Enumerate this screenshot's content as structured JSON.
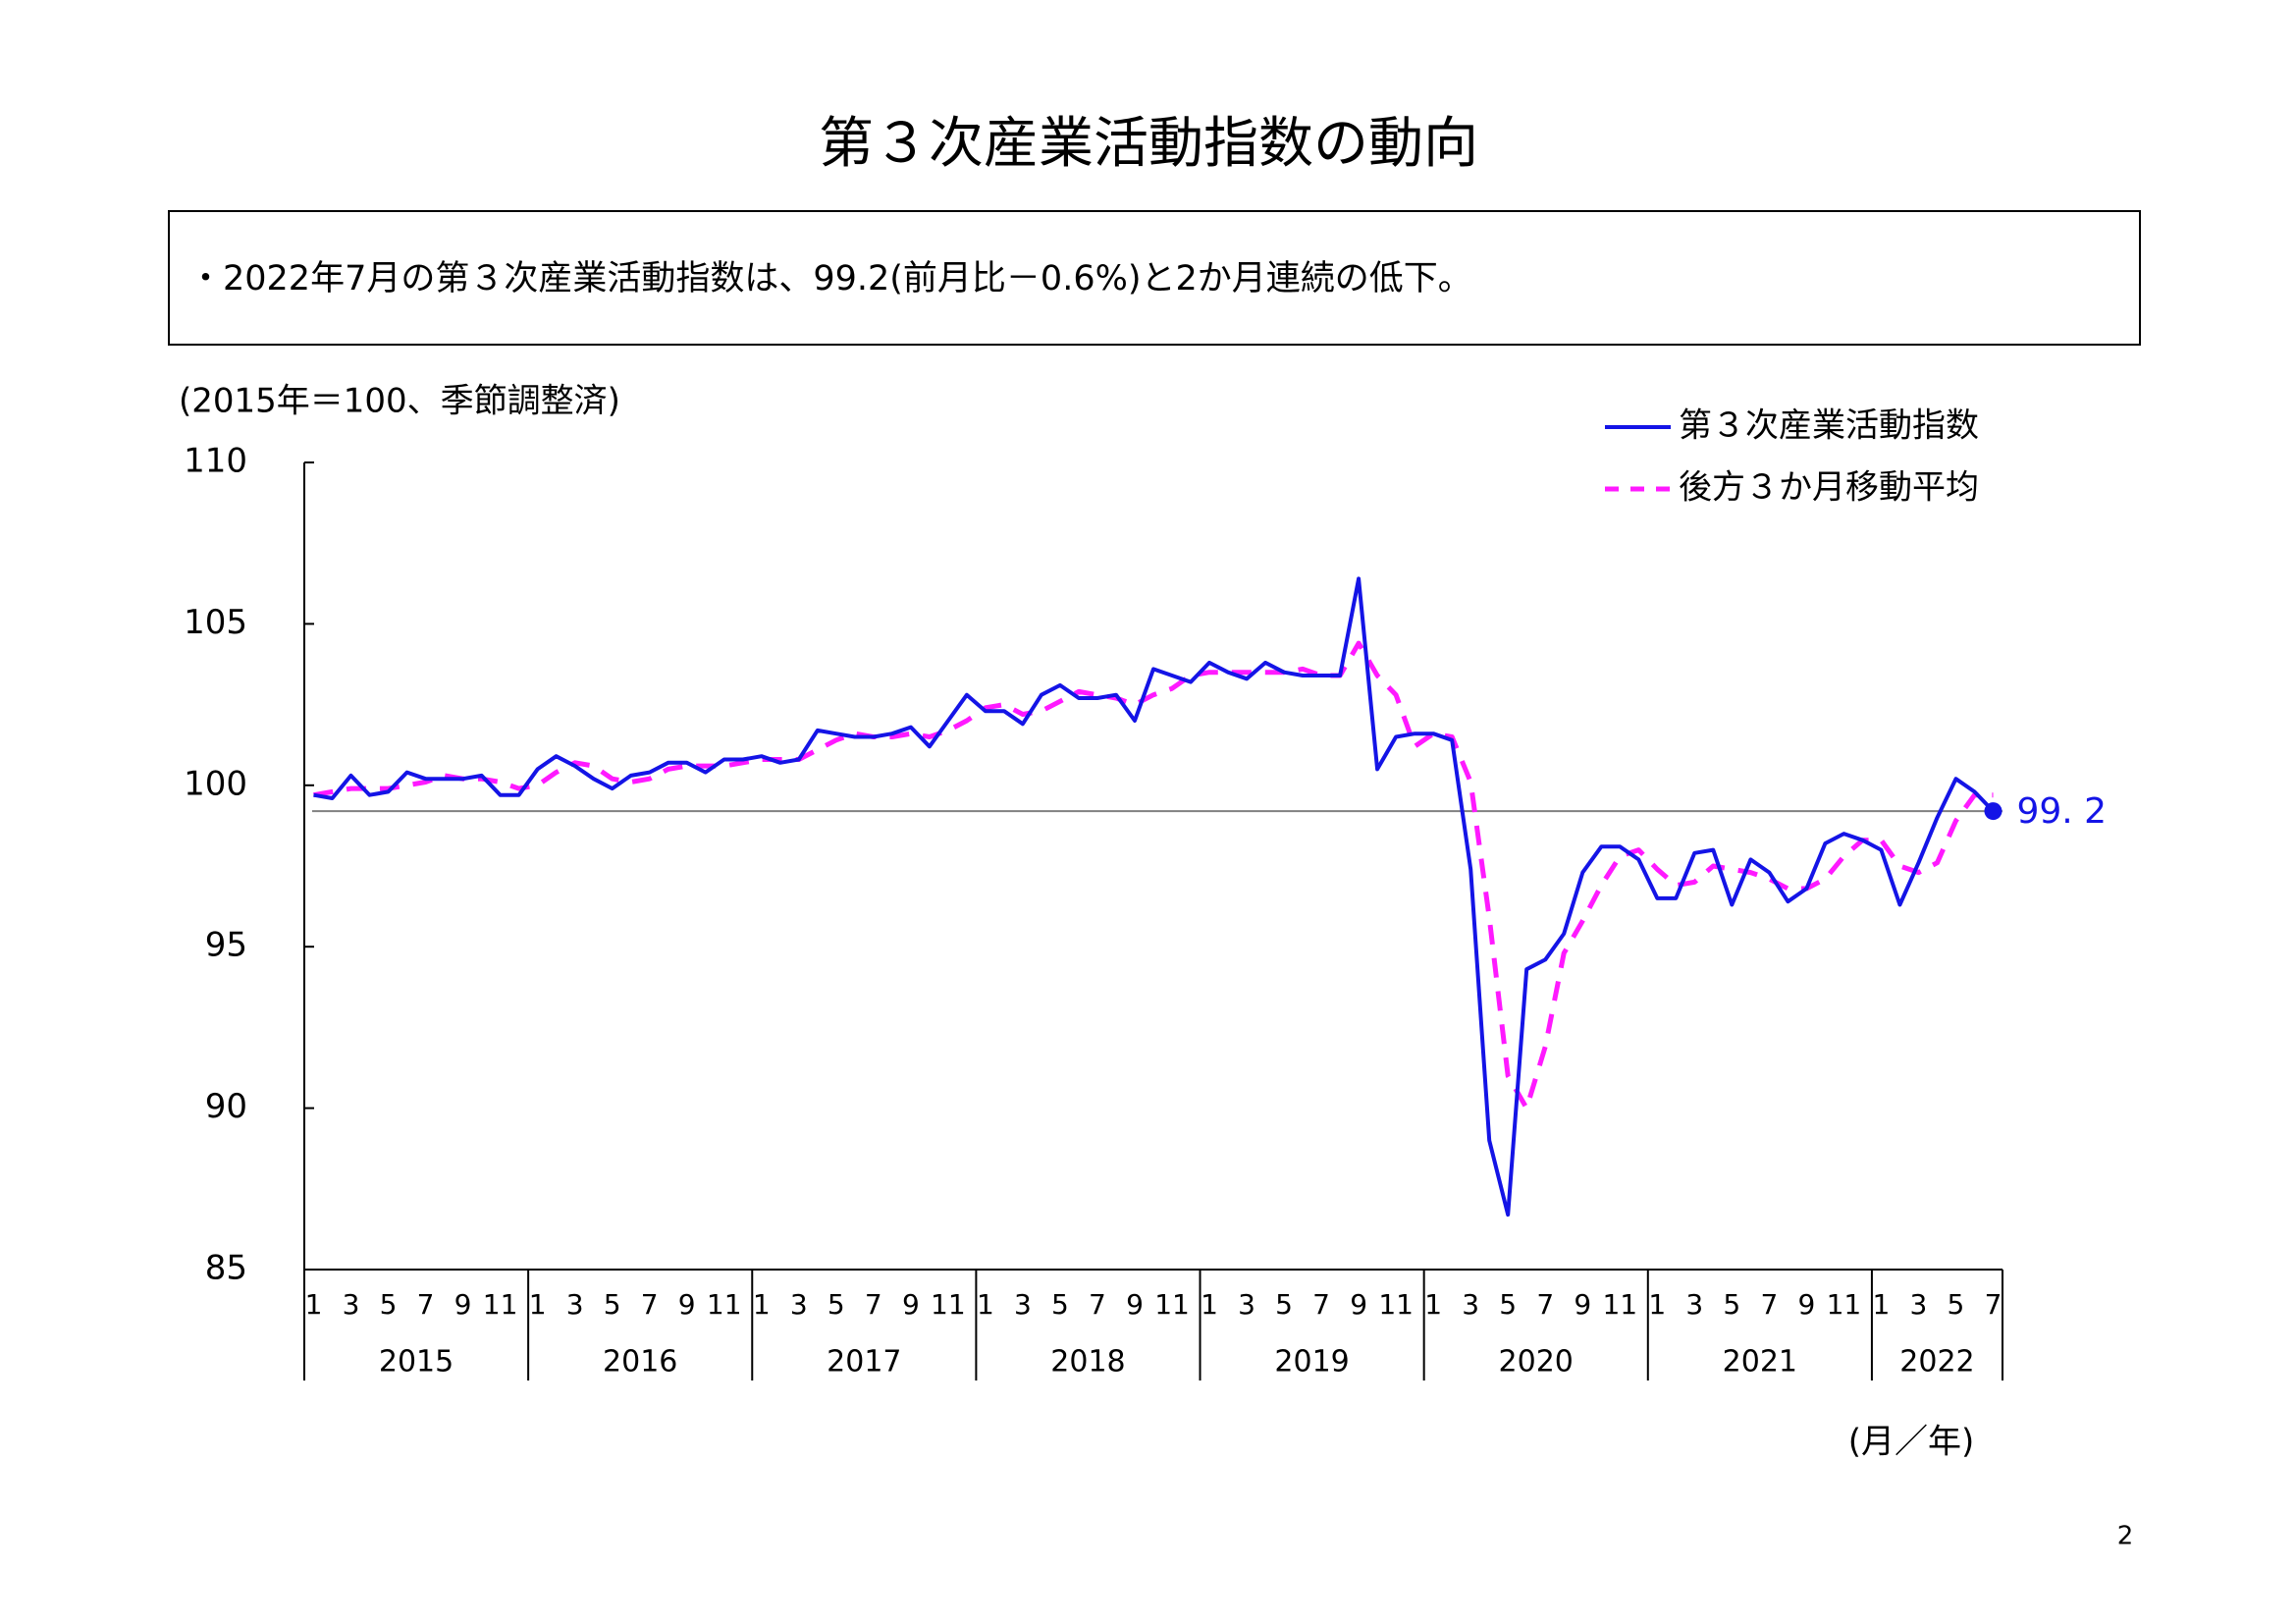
{
  "chart_data": {
    "type": "line",
    "title": "第３次産業活動指数の動向",
    "summary": "・2022年7月の第３次産業活動指数は、99.2(前月比－0.6%)と2か月連続の低下。",
    "y_note": "(2015年＝100、季節調整済)",
    "x_note": "(月／年)",
    "page_number": "2",
    "categories": [
      "1",
      null,
      "3",
      null,
      "5",
      null,
      "7",
      null,
      "9",
      null,
      "11",
      null,
      "1",
      null,
      "3",
      null,
      "5",
      null,
      "7",
      null,
      "9",
      null,
      "11",
      null,
      "1",
      null,
      "3",
      null,
      "5",
      null,
      "7",
      null,
      "9",
      null,
      "11",
      null,
      "1",
      null,
      "3",
      null,
      "5",
      null,
      "7",
      null,
      "9",
      null,
      "11",
      null,
      "1",
      null,
      "3",
      null,
      "5",
      null,
      "7",
      null,
      "9",
      null,
      "11",
      null,
      "1",
      null,
      "3",
      null,
      "5",
      null,
      "7",
      null,
      "9",
      null,
      "11",
      null,
      "1",
      null,
      "3",
      null,
      "5",
      null,
      "7",
      null,
      "9",
      null,
      "11",
      null,
      "1",
      null,
      "3",
      null,
      "5",
      null,
      "7"
    ],
    "years": [
      "2015",
      "2016",
      "2017",
      "2018",
      "2019",
      "2020",
      "2021",
      "2022"
    ],
    "series": [
      {
        "name": "第３次産業活動指数",
        "color": "#1414e6",
        "style": "solid",
        "values": [
          99.7,
          99.6,
          100.3,
          99.7,
          99.8,
          100.4,
          100.2,
          100.2,
          100.2,
          100.3,
          99.7,
          99.7,
          100.5,
          100.9,
          100.6,
          100.2,
          99.9,
          100.3,
          100.4,
          100.7,
          100.7,
          100.4,
          100.8,
          100.8,
          100.9,
          100.7,
          100.8,
          101.7,
          101.6,
          101.5,
          101.5,
          101.6,
          101.8,
          101.2,
          102.0,
          102.8,
          102.3,
          102.3,
          101.9,
          102.8,
          103.1,
          102.7,
          102.7,
          102.8,
          102.0,
          103.6,
          103.4,
          103.2,
          103.8,
          103.5,
          103.3,
          103.8,
          103.5,
          103.4,
          103.4,
          103.4,
          106.4,
          100.5,
          101.5,
          101.6,
          101.6,
          101.4,
          97.4,
          89.0,
          86.7,
          94.3,
          94.6,
          95.4,
          97.3,
          98.1,
          98.1,
          97.7,
          96.5,
          96.5,
          97.9,
          98.0,
          96.3,
          97.7,
          97.3,
          96.4,
          96.8,
          98.2,
          98.5,
          98.3,
          98.0,
          96.3,
          97.6,
          99.0,
          100.2,
          99.8,
          99.2
        ]
      },
      {
        "name": "後方３か月移動平均",
        "color": "#ff19ff",
        "style": "dashed",
        "values": [
          99.7,
          99.8,
          99.9,
          99.9,
          99.9,
          100.0,
          100.1,
          100.3,
          100.2,
          100.2,
          100.1,
          99.9,
          100.0,
          100.4,
          100.7,
          100.6,
          100.2,
          100.1,
          100.2,
          100.5,
          100.6,
          100.6,
          100.6,
          100.7,
          100.8,
          100.8,
          100.8,
          101.1,
          101.4,
          101.6,
          101.5,
          101.5,
          101.6,
          101.5,
          101.7,
          102.0,
          102.4,
          102.5,
          102.2,
          102.3,
          102.6,
          102.9,
          102.8,
          102.7,
          102.5,
          102.8,
          103.0,
          103.4,
          103.5,
          103.5,
          103.5,
          103.5,
          103.5,
          103.6,
          103.4,
          103.4,
          104.4,
          103.4,
          102.8,
          101.2,
          101.6,
          101.5,
          100.1,
          95.9,
          91.0,
          90.0,
          91.9,
          94.8,
          95.8,
          96.9,
          97.8,
          98.0,
          97.4,
          96.9,
          97.0,
          97.5,
          97.4,
          97.3,
          97.1,
          96.8,
          96.8,
          97.1,
          97.8,
          98.3,
          98.3,
          97.5,
          97.3,
          97.6,
          98.9,
          99.7,
          99.7
        ]
      }
    ],
    "annotation": {
      "text": "99. 2",
      "value": 99.2,
      "color": "#1414e6"
    },
    "ylim": [
      85,
      110
    ],
    "yticks": [
      85,
      90,
      95,
      100,
      105,
      110
    ],
    "legend": "top-right",
    "grid": false
  }
}
